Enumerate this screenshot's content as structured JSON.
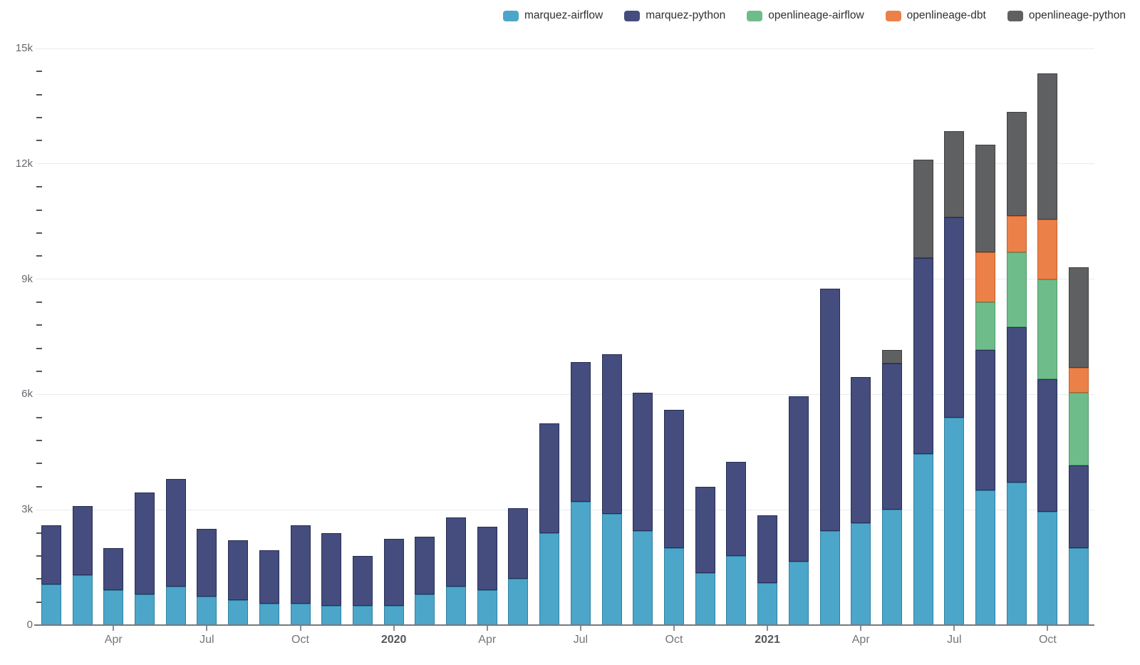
{
  "chart_data": {
    "type": "bar",
    "stacked": true,
    "title": "",
    "xlabel": "",
    "ylabel": "",
    "grid": true,
    "legend_position": "top-right",
    "months": [
      "Feb 2019",
      "Mar 2019",
      "Apr 2019",
      "May 2019",
      "Jun 2019",
      "Jul 2019",
      "Aug 2019",
      "Sep 2019",
      "Oct 2019",
      "Nov 2019",
      "Dec 2019",
      "Jan 2020",
      "Feb 2020",
      "Mar 2020",
      "Apr 2020",
      "May 2020",
      "Jun 2020",
      "Jul 2020",
      "Aug 2020",
      "Sep 2020",
      "Oct 2020",
      "Nov 2020",
      "Dec 2020",
      "Jan 2021",
      "Feb 2021",
      "Mar 2021",
      "Apr 2021",
      "May 2021",
      "Jun 2021",
      "Jul 2021",
      "Aug 2021",
      "Sep 2021",
      "Oct 2021",
      "Nov 2021"
    ],
    "series": [
      {
        "name": "marquez-airflow",
        "color": "#4CA6C9",
        "border_color": "#2F81A4",
        "values": [
          1050,
          1300,
          900,
          800,
          1000,
          750,
          650,
          550,
          550,
          500,
          500,
          500,
          800,
          1000,
          900,
          1200,
          2400,
          3200,
          2900,
          2450,
          2000,
          1350,
          1800,
          1100,
          1650,
          2450,
          2650,
          3000,
          4450,
          5400,
          3500,
          3700,
          2950,
          2000
        ]
      },
      {
        "name": "marquez-python",
        "color": "#444D7D",
        "border_color": "#272E54",
        "values": [
          1550,
          1800,
          1100,
          2650,
          2800,
          1750,
          1550,
          1400,
          2050,
          1900,
          1300,
          1750,
          1500,
          1800,
          1650,
          1850,
          2850,
          3650,
          4150,
          3600,
          3600,
          2250,
          2450,
          1750,
          4300,
          6300,
          3800,
          3800,
          5100,
          5200,
          3650,
          4050,
          3450,
          2150
        ]
      },
      {
        "name": "openlineage-airflow",
        "color": "#6FBC8B",
        "border_color": "#4C9B6B",
        "values": [
          0,
          0,
          0,
          0,
          0,
          0,
          0,
          0,
          0,
          0,
          0,
          0,
          0,
          0,
          0,
          0,
          0,
          0,
          0,
          0,
          0,
          0,
          0,
          0,
          0,
          0,
          0,
          0,
          0,
          0,
          1250,
          1950,
          2600,
          1900
        ]
      },
      {
        "name": "openlineage-dbt",
        "color": "#EC8049",
        "border_color": "#C4602C",
        "values": [
          0,
          0,
          0,
          0,
          0,
          0,
          0,
          0,
          0,
          0,
          0,
          0,
          0,
          0,
          0,
          0,
          0,
          0,
          0,
          0,
          0,
          0,
          0,
          0,
          0,
          0,
          0,
          0,
          0,
          0,
          1300,
          950,
          1550,
          650
        ]
      },
      {
        "name": "openlineage-python",
        "color": "#5F6062",
        "border_color": "#3F4042",
        "values": [
          0,
          0,
          0,
          0,
          0,
          0,
          0,
          0,
          0,
          0,
          0,
          0,
          0,
          0,
          0,
          0,
          0,
          0,
          0,
          0,
          0,
          0,
          0,
          0,
          0,
          0,
          0,
          350,
          2550,
          2250,
          2800,
          2700,
          3800,
          2600
        ]
      }
    ],
    "x_ticks": [
      {
        "index": 2,
        "label": "Apr",
        "bold": false
      },
      {
        "index": 5,
        "label": "Jul",
        "bold": false
      },
      {
        "index": 8,
        "label": "Oct",
        "bold": false
      },
      {
        "index": 11,
        "label": "2020",
        "bold": true
      },
      {
        "index": 14,
        "label": "Apr",
        "bold": false
      },
      {
        "index": 17,
        "label": "Jul",
        "bold": false
      },
      {
        "index": 20,
        "label": "Oct",
        "bold": false
      },
      {
        "index": 23,
        "label": "2021",
        "bold": true
      },
      {
        "index": 26,
        "label": "Apr",
        "bold": false
      },
      {
        "index": 29,
        "label": "Jul",
        "bold": false
      },
      {
        "index": 32,
        "label": "Oct",
        "bold": false
      }
    ],
    "y_axis": {
      "min": 0,
      "max": 15000,
      "major_step": 3000,
      "minor_step": 600,
      "labels": [
        "0",
        "3k",
        "6k",
        "9k",
        "12k",
        "15k"
      ]
    }
  }
}
